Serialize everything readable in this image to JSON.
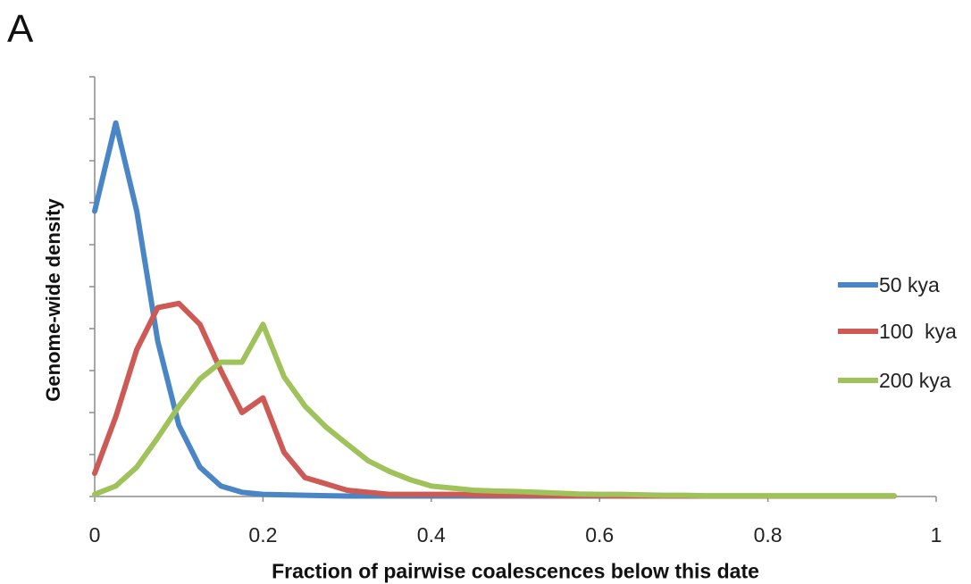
{
  "panel_label": "A",
  "chart_data": {
    "type": "line",
    "title": "",
    "xlabel": "Fraction of pairwise coalescences below this date",
    "ylabel": "Genome-wide density",
    "xlim": [
      0,
      1
    ],
    "x_ticks": [
      "0",
      "0.2",
      "0.4",
      "0.6",
      "0.8",
      "1"
    ],
    "y_tick_count": 11,
    "y_tick_labels_shown": false,
    "grid": false,
    "legend_position": "right",
    "x": [
      0,
      0.025,
      0.05,
      0.075,
      0.1,
      0.125,
      0.15,
      0.175,
      0.2,
      0.225,
      0.25,
      0.275,
      0.3,
      0.325,
      0.35,
      0.375,
      0.4,
      0.425,
      0.45,
      0.475,
      0.5,
      0.525,
      0.55,
      0.575,
      0.6,
      0.625,
      0.65,
      0.675,
      0.7,
      0.725,
      0.75,
      0.775,
      0.8,
      0.825,
      0.85,
      0.875,
      0.9,
      0.925,
      0.95
    ],
    "series": [
      {
        "name": "50 kya",
        "color": "#4a86c5",
        "values": [
          6.8,
          8.9,
          6.8,
          3.7,
          1.7,
          0.7,
          0.25,
          0.1,
          0.05,
          0.04,
          0.03,
          0.02,
          0.01,
          0.01,
          0.01,
          0.01,
          0.01,
          0.01,
          0.01,
          0.01,
          0.01,
          0.01,
          0.01,
          0.01,
          0.01,
          0.01,
          0.01,
          0.01,
          0.01,
          0.01,
          0.01,
          0.01,
          0.01,
          0.01,
          0.01,
          0.01,
          0.01,
          0.01,
          0.01
        ]
      },
      {
        "name": "100  kya",
        "color": "#cd5a54",
        "values": [
          0.55,
          1.9,
          3.5,
          4.5,
          4.6,
          4.1,
          3.0,
          2.0,
          2.35,
          1.05,
          0.45,
          0.3,
          0.15,
          0.1,
          0.05,
          0.05,
          0.05,
          0.05,
          0.04,
          0.03,
          0.03,
          0.03,
          0.02,
          0.02,
          0.02,
          0.01,
          0.01,
          0.01,
          0.01,
          0.01,
          0.01,
          0.01,
          0.01,
          0.01,
          0.01,
          0.01,
          0.01,
          0.01,
          0.01
        ]
      },
      {
        "name": "200 kya",
        "color": "#9fc35a",
        "values": [
          0.05,
          0.25,
          0.7,
          1.4,
          2.15,
          2.8,
          3.2,
          3.2,
          4.1,
          2.85,
          2.15,
          1.65,
          1.25,
          0.85,
          0.6,
          0.4,
          0.25,
          0.2,
          0.15,
          0.13,
          0.12,
          0.1,
          0.08,
          0.06,
          0.05,
          0.05,
          0.04,
          0.03,
          0.03,
          0.02,
          0.02,
          0.02,
          0.02,
          0.02,
          0.02,
          0.02,
          0.02,
          0.02,
          0.02
        ]
      }
    ]
  }
}
